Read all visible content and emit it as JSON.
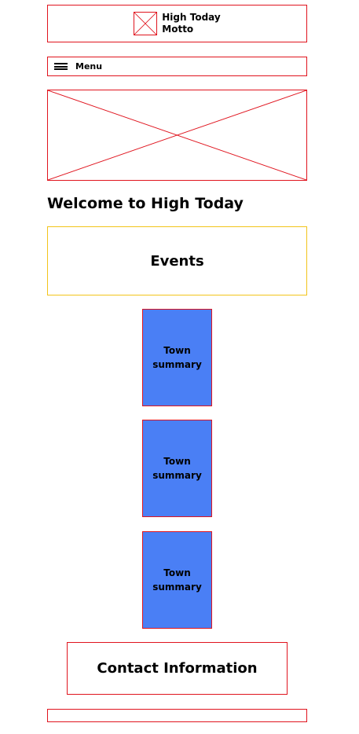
{
  "header": {
    "site_name": "High Today",
    "motto": "Motto"
  },
  "menu": {
    "label": "Menu"
  },
  "welcome": {
    "heading": "Welcome to High Today"
  },
  "events": {
    "label": "Events"
  },
  "towns": [
    {
      "line1": "Town",
      "line2": "summary"
    },
    {
      "line1": "Town",
      "line2": "summary"
    },
    {
      "line1": "Town",
      "line2": "summary"
    }
  ],
  "contact": {
    "label": "Contact Information"
  },
  "colors": {
    "wireframe_border": "#e0141e",
    "events_border": "#f2c41a",
    "town_card_fill": "#4a7ff5"
  }
}
